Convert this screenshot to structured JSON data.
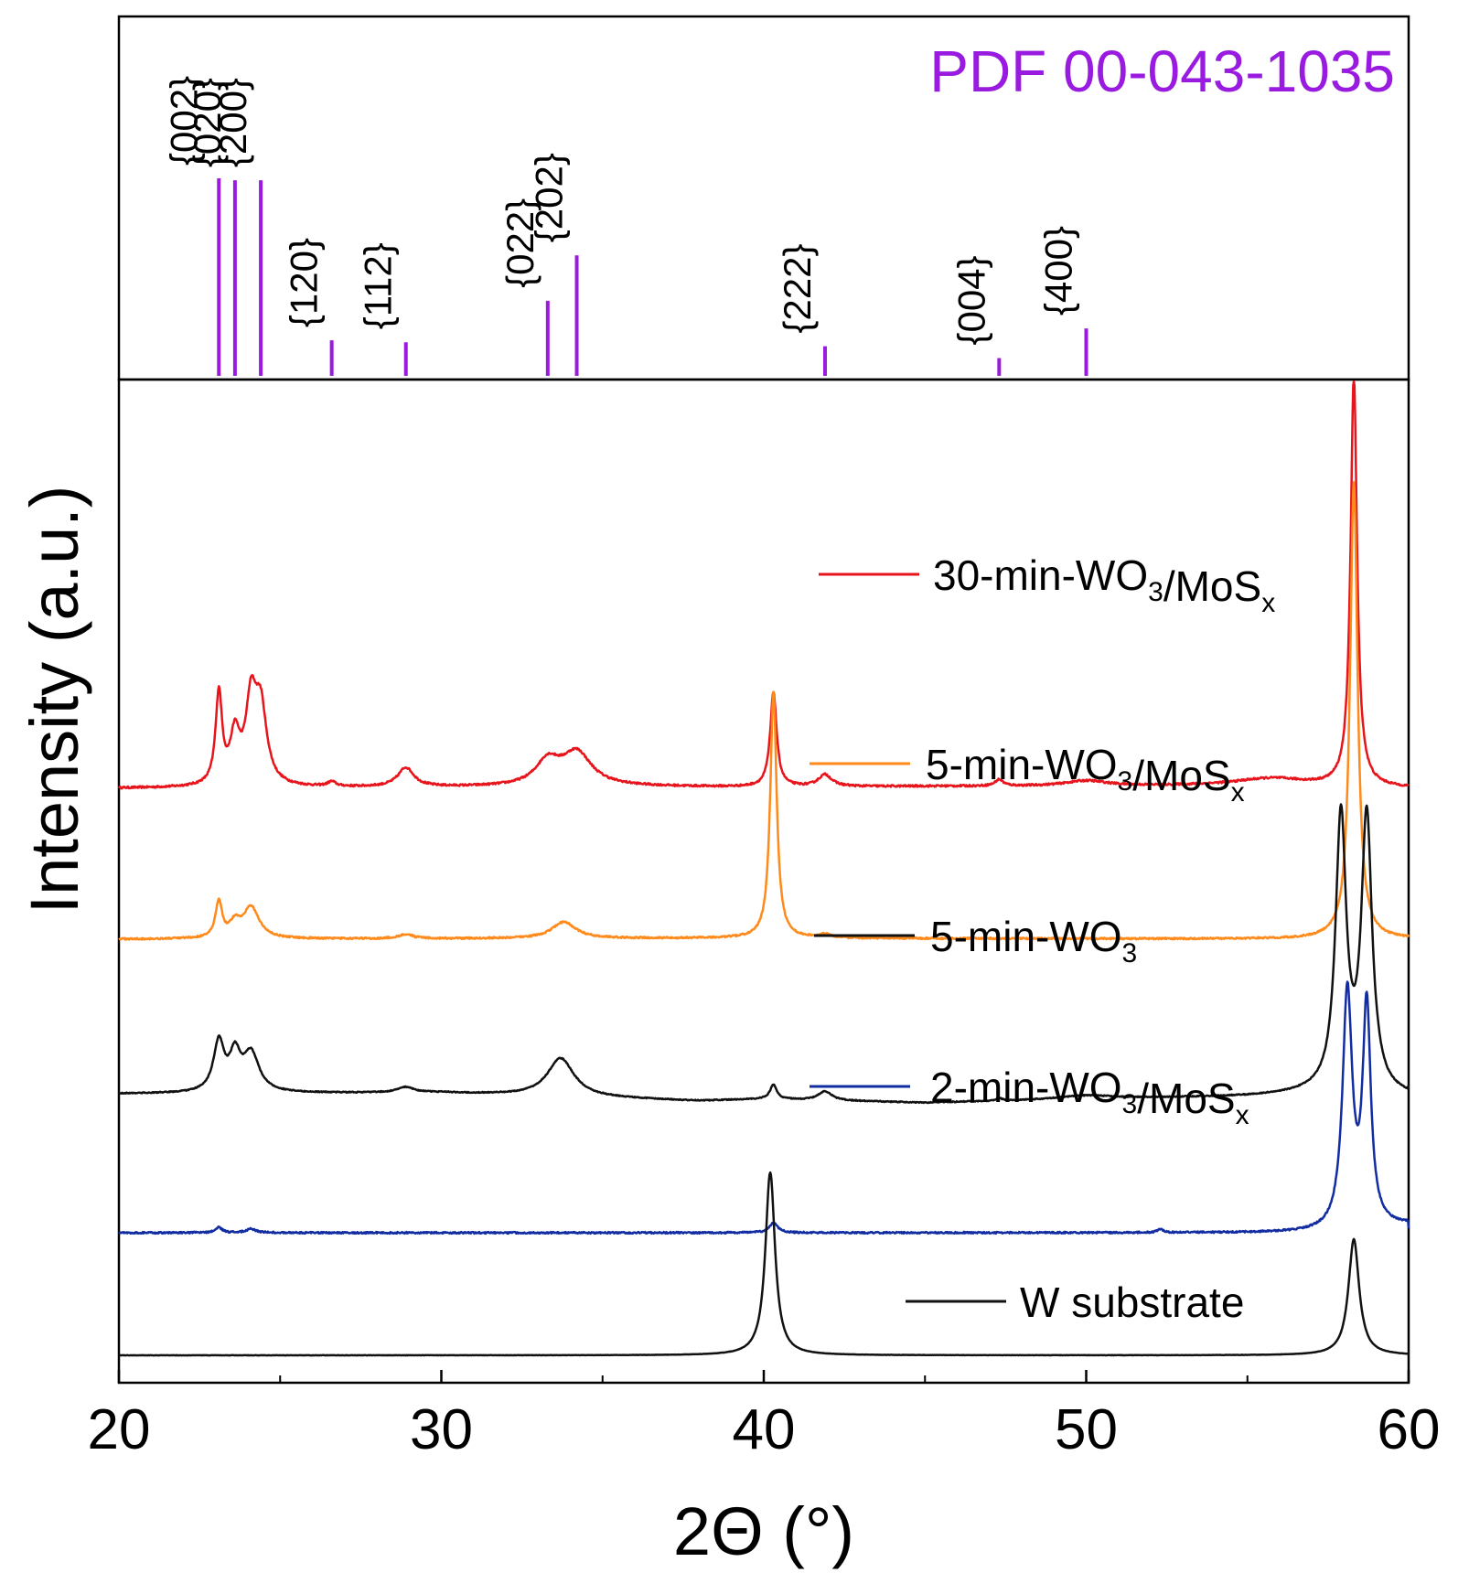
{
  "chart_data": {
    "type": "line",
    "title": "",
    "xlabel": "2Θ (°)",
    "ylabel": "Intensity (a.u.)",
    "xlim": [
      20,
      60
    ],
    "x_ticks": [
      {
        "value": 20,
        "label": "20"
      },
      {
        "value": 30,
        "label": "30"
      },
      {
        "value": 40,
        "label": "40"
      },
      {
        "value": 50,
        "label": "50"
      },
      {
        "value": 60,
        "label": "60"
      }
    ],
    "x_minor_ticks": [
      25,
      35,
      45,
      55
    ],
    "reference_pattern": {
      "label": "PDF 00-043-1035",
      "color": "#9a1be0",
      "ylim": [
        0,
        100
      ],
      "peaks": [
        {
          "x": 23.1,
          "intensity": 100,
          "hkl": "{002}"
        },
        {
          "x": 23.6,
          "intensity": 99,
          "hkl": "{020}"
        },
        {
          "x": 24.4,
          "intensity": 99,
          "hkl": "{200}"
        },
        {
          "x": 26.6,
          "intensity": 18,
          "hkl": "{120}"
        },
        {
          "x": 28.9,
          "intensity": 17,
          "hkl": "{112}"
        },
        {
          "x": 33.3,
          "intensity": 38,
          "hkl": "{022}"
        },
        {
          "x": 34.2,
          "intensity": 61,
          "hkl": "{202}"
        },
        {
          "x": 41.9,
          "intensity": 15,
          "hkl": "{222}"
        },
        {
          "x": 47.3,
          "intensity": 9,
          "hkl": "{004}"
        },
        {
          "x": 50.0,
          "intensity": 24,
          "hkl": "{400}"
        }
      ]
    },
    "series": [
      {
        "name": "30-min-WO3/MoSx",
        "label_main": "30-min-WO",
        "label_sub1": "3",
        "label_mid": "/MoS",
        "label_sub2": "x",
        "color": "#e8141c",
        "baseline": 620,
        "noise": 0.35,
        "background": [
          [
            20,
            0
          ],
          [
            30,
            1
          ],
          [
            35,
            2
          ],
          [
            40,
            1
          ],
          [
            45,
            2
          ],
          [
            50,
            2
          ],
          [
            55,
            3
          ],
          [
            60,
            0
          ]
        ],
        "peaks": [
          {
            "x": 23.1,
            "h": 100,
            "w": 0.12
          },
          {
            "x": 23.6,
            "h": 52,
            "w": 0.18
          },
          {
            "x": 24.1,
            "h": 86,
            "w": 0.2
          },
          {
            "x": 24.4,
            "h": 80,
            "w": 0.22
          },
          {
            "x": 26.6,
            "h": 5,
            "w": 0.15
          },
          {
            "x": 28.9,
            "h": 21,
            "w": 0.3
          },
          {
            "x": 33.3,
            "h": 26,
            "w": 0.45
          },
          {
            "x": 34.2,
            "h": 36,
            "w": 0.55
          },
          {
            "x": 40.3,
            "h": 104,
            "w": 0.12
          },
          {
            "x": 41.9,
            "h": 13,
            "w": 0.25
          },
          {
            "x": 47.3,
            "h": 7,
            "w": 0.15
          },
          {
            "x": 50.0,
            "h": 6,
            "w": 0.8
          },
          {
            "x": 55.8,
            "h": 8,
            "w": 1.3
          },
          {
            "x": 58.3,
            "h": 450,
            "w": 0.12
          }
        ]
      },
      {
        "name": "5-min-WO3/MoSx",
        "label_main": "5-min-WO",
        "label_sub1": "3",
        "label_mid": "/MoS",
        "label_sub2": "x",
        "color": "#ff8a1c",
        "baseline": 455,
        "noise": 0.3,
        "background": [
          [
            20,
            0
          ],
          [
            40,
            1
          ],
          [
            60,
            0
          ]
        ],
        "peaks": [
          {
            "x": 23.1,
            "h": 40,
            "w": 0.12
          },
          {
            "x": 23.6,
            "h": 15,
            "w": 0.2
          },
          {
            "x": 24.1,
            "h": 34,
            "w": 0.3
          },
          {
            "x": 28.9,
            "h": 5,
            "w": 0.25
          },
          {
            "x": 33.8,
            "h": 18,
            "w": 0.45
          },
          {
            "x": 40.3,
            "h": 270,
            "w": 0.12
          },
          {
            "x": 41.9,
            "h": 4,
            "w": 0.2
          },
          {
            "x": 58.3,
            "h": 500,
            "w": 0.14
          }
        ]
      },
      {
        "name": "5-min-WO3",
        "label_main": "5-min-WO",
        "label_sub1": "3",
        "label_mid": "",
        "label_sub2": "",
        "color": "#111111",
        "baseline": 286,
        "noise": 0.18,
        "background": [
          [
            20,
            0
          ],
          [
            30,
            1
          ],
          [
            38,
            -8
          ],
          [
            40,
            -6
          ],
          [
            45,
            -10
          ],
          [
            50,
            -6
          ],
          [
            55,
            -3
          ],
          [
            57,
            0
          ],
          [
            60,
            -4
          ]
        ],
        "peaks": [
          {
            "x": 23.1,
            "h": 54,
            "w": 0.2
          },
          {
            "x": 23.6,
            "h": 38,
            "w": 0.2
          },
          {
            "x": 24.1,
            "h": 42,
            "w": 0.3
          },
          {
            "x": 28.9,
            "h": 6,
            "w": 0.3
          },
          {
            "x": 33.7,
            "h": 42,
            "w": 0.5
          },
          {
            "x": 40.3,
            "h": 16,
            "w": 0.12
          },
          {
            "x": 41.9,
            "h": 10,
            "w": 0.25
          },
          {
            "x": 47.3,
            "h": 3,
            "w": 0.1
          },
          {
            "x": 50.0,
            "h": 4,
            "w": 1.0
          },
          {
            "x": 57.9,
            "h": 300,
            "w": 0.2
          },
          {
            "x": 58.7,
            "h": 300,
            "w": 0.2
          }
        ]
      },
      {
        "name": "2-min-WO3/MoSx",
        "label_main": "2-min-WO",
        "label_sub1": "3",
        "label_mid": "/MoS",
        "label_sub2": "x",
        "color": "#122ca1",
        "baseline": 134,
        "noise": 0.3,
        "background": [
          [
            20,
            0
          ],
          [
            58,
            0
          ],
          [
            60,
            8
          ]
        ],
        "peaks": [
          {
            "x": 23.1,
            "h": 6,
            "w": 0.12
          },
          {
            "x": 24.1,
            "h": 4,
            "w": 0.2
          },
          {
            "x": 40.3,
            "h": 11,
            "w": 0.15
          },
          {
            "x": 52.3,
            "h": 4,
            "w": 0.1
          },
          {
            "x": 58.1,
            "h": 260,
            "w": 0.18
          },
          {
            "x": 58.7,
            "h": 240,
            "w": 0.15
          }
        ]
      },
      {
        "name": "W substrate",
        "label_main": "W substrate",
        "label_sub1": "",
        "label_mid": "",
        "label_sub2": "",
        "color": "#111111",
        "baseline": 0,
        "noise": 0.05,
        "background": [
          [
            20,
            0
          ],
          [
            60,
            0
          ]
        ],
        "peaks": [
          {
            "x": 40.2,
            "h": 200,
            "w": 0.18
          },
          {
            "x": 58.3,
            "h": 127,
            "w": 0.2
          }
        ]
      }
    ]
  }
}
